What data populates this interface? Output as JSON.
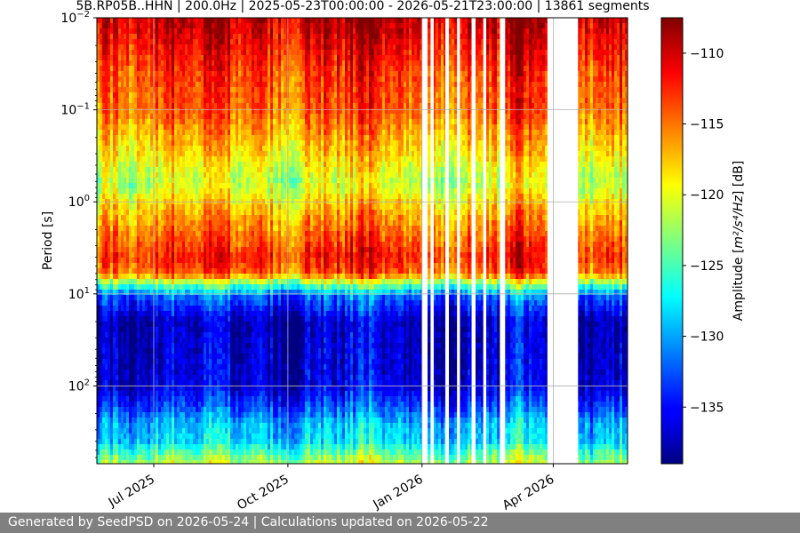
{
  "chart_data": {
    "type": "heatmap",
    "title": "5B.RP05B..HHN | 200.0Hz | 2025-05-23T00:00:00 - 2026-05-21T23:00:00 | 13861 segments",
    "xlabel": "",
    "ylabel": "Period [s]",
    "x_range": [
      "2025-05-23",
      "2026-05-21"
    ],
    "x_ticks": [
      {
        "date": "2025-07-01",
        "label": "Jul 2025"
      },
      {
        "date": "2025-10-01",
        "label": "Oct 2025"
      },
      {
        "date": "2026-01-01",
        "label": "Jan 2026"
      },
      {
        "date": "2026-04-01",
        "label": "Apr 2026"
      }
    ],
    "y_scale": "log",
    "y_inverted": true,
    "y_range": [
      0.01,
      700
    ],
    "y_ticks": [
      {
        "value": 0.01,
        "base": "10",
        "exp": "−2"
      },
      {
        "value": 0.1,
        "base": "10",
        "exp": "−1"
      },
      {
        "value": 1,
        "base": "10",
        "exp": "0"
      },
      {
        "value": 10,
        "base": "10",
        "exp": "1"
      },
      {
        "value": 100,
        "base": "10",
        "exp": "2"
      }
    ],
    "grid": true,
    "colorbar": {
      "label_prefix": "Amplitude [",
      "label_units": "m²/s⁴/Hz",
      "label_suffix": "] [dB]",
      "colormap": "jet",
      "range": [
        -139,
        -107.5
      ],
      "ticks": [
        -110,
        -115,
        -120,
        -125,
        -130,
        -135
      ],
      "tick_labels": [
        "−110",
        "−115",
        "−120",
        "−125",
        "−130",
        "−135"
      ]
    },
    "period_profile": [
      {
        "period": 0.01,
        "amplitude": -109
      },
      {
        "period": 0.015,
        "amplitude": -110
      },
      {
        "period": 0.04,
        "amplitude": -113
      },
      {
        "period": 0.1,
        "amplitude": -114
      },
      {
        "period": 0.3,
        "amplitude": -118
      },
      {
        "period": 0.6,
        "amplitude": -121
      },
      {
        "period": 1.5,
        "amplitude": -116
      },
      {
        "period": 4,
        "amplitude": -112
      },
      {
        "period": 6,
        "amplitude": -114
      },
      {
        "period": 8,
        "amplitude": -124
      },
      {
        "period": 11,
        "amplitude": -132
      },
      {
        "period": 20,
        "amplitude": -137
      },
      {
        "period": 100,
        "amplitude": -136
      },
      {
        "period": 160,
        "amplitude": -133
      },
      {
        "period": 260,
        "amplitude": -129
      },
      {
        "period": 400,
        "amplitude": -128
      },
      {
        "period": 700,
        "amplitude": -121
      }
    ],
    "data_gaps": [
      [
        "2026-01-01",
        "2026-01-04"
      ],
      [
        "2026-01-07",
        "2026-01-09"
      ],
      [
        "2026-01-17",
        "2026-01-19"
      ],
      [
        "2026-01-25",
        "2026-01-27"
      ],
      [
        "2026-02-04",
        "2026-02-06"
      ],
      [
        "2026-02-12",
        "2026-02-14"
      ],
      [
        "2026-02-24",
        "2026-02-27"
      ],
      [
        "2026-03-28",
        "2026-04-04"
      ],
      [
        "2026-04-05",
        "2026-04-18"
      ]
    ]
  },
  "footer": {
    "text": "Generated by SeedPSD on 2026-05-24 | Calculations updated on 2026-05-22"
  }
}
